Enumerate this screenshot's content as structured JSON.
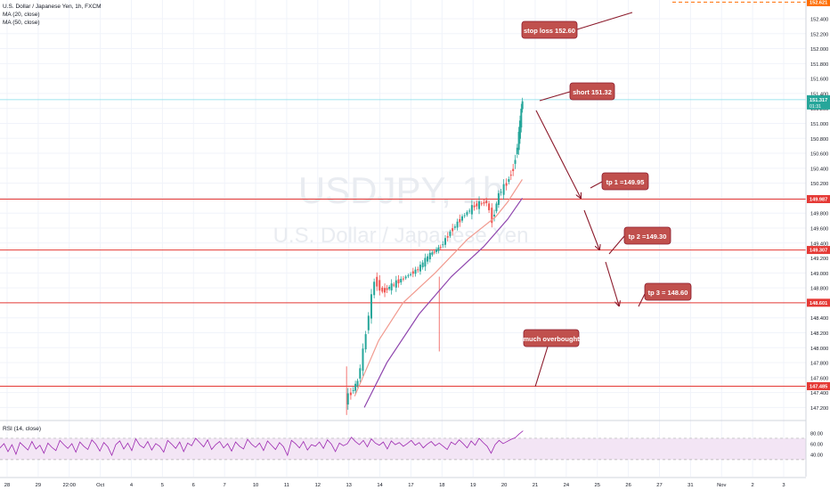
{
  "header": {
    "symbol_line": "U.S. Dollar / Japanese Yen, 1h, FXCM",
    "ma20_label": "MA (20, close)",
    "ma50_label": "MA (50, close)",
    "watermark_symbol": "USDJPY, 1h",
    "watermark_name": "U.S. Dollar / Japanese Yen"
  },
  "rsi_panel": {
    "label": "RSI (14, close)",
    "ticks": [
      "80.00",
      "60.00",
      "40.00"
    ],
    "tick_values": [
      80,
      60,
      40
    ],
    "band_upper": 70,
    "band_lower": 30
  },
  "x_axis": {
    "labels": [
      "28",
      "29",
      "22:00",
      "Oct",
      "4",
      "5",
      "6",
      "7",
      "10",
      "11",
      "12",
      "13",
      "14",
      "17",
      "18",
      "19",
      "20",
      "21",
      "24",
      "25",
      "26",
      "27",
      "31",
      "Nov",
      "2",
      "3"
    ]
  },
  "price_axis": {
    "ticks": [
      "152.400",
      "152.200",
      "152.000",
      "151.800",
      "151.600",
      "151.400",
      "151.200",
      "151.000",
      "150.800",
      "150.600",
      "150.400",
      "150.200",
      "150.000",
      "149.800",
      "149.600",
      "149.400",
      "149.200",
      "149.000",
      "148.800",
      "148.600",
      "148.400",
      "148.200",
      "148.000",
      "147.800",
      "147.600",
      "147.400",
      "147.200"
    ],
    "badges": [
      {
        "text": "152.621",
        "value": 152.621,
        "kind": "stop"
      },
      {
        "text": "151.317",
        "sub": "01:31",
        "value": 151.317,
        "kind": "current"
      },
      {
        "text": "149.987",
        "value": 149.987,
        "kind": "level"
      },
      {
        "text": "149.307",
        "value": 149.307,
        "kind": "level"
      },
      {
        "text": "148.601",
        "value": 148.601,
        "kind": "level"
      },
      {
        "text": "147.485",
        "value": 147.485,
        "kind": "level"
      }
    ]
  },
  "annotations": {
    "stop_loss": "stop loss 152.60",
    "short": "short 151.32",
    "tp1": "tp 1 =149.95",
    "tp2": "tp 2 =149.30",
    "tp3": "tp 3 = 148.60",
    "overbought": "much overbought"
  },
  "colors": {
    "up": "#26a69a",
    "down": "#ef5350",
    "ma20": "#f19a8f",
    "ma50": "#8e44ad",
    "level_line": "#e53935",
    "note_fill": "#c0504d",
    "arrow": "#8b1a2b",
    "rsi_line": "#9c27b0",
    "rsi_band": "#f3e5f5"
  },
  "chart_data": {
    "type": "candlestick",
    "symbol": "USDJPY",
    "timeframe": "1h",
    "ylim": [
      147.05,
      152.65
    ],
    "horizontal_levels": [
      149.987,
      149.307,
      148.601,
      147.485
    ],
    "stop_level": 152.621,
    "current_price": 151.317,
    "price_path": [
      {
        "x": 0.43,
        "y": 147.3
      },
      {
        "x": 0.437,
        "y": 147.4
      },
      {
        "x": 0.445,
        "y": 147.55
      },
      {
        "x": 0.452,
        "y": 147.95
      },
      {
        "x": 0.459,
        "y": 148.45
      },
      {
        "x": 0.466,
        "y": 148.9
      },
      {
        "x": 0.476,
        "y": 148.75
      },
      {
        "x": 0.49,
        "y": 148.85
      },
      {
        "x": 0.505,
        "y": 148.95
      },
      {
        "x": 0.52,
        "y": 149.05
      },
      {
        "x": 0.535,
        "y": 149.25
      },
      {
        "x": 0.548,
        "y": 149.35
      },
      {
        "x": 0.56,
        "y": 149.55
      },
      {
        "x": 0.575,
        "y": 149.75
      },
      {
        "x": 0.59,
        "y": 149.9
      },
      {
        "x": 0.605,
        "y": 149.95
      },
      {
        "x": 0.612,
        "y": 149.7
      },
      {
        "x": 0.62,
        "y": 150.05
      },
      {
        "x": 0.63,
        "y": 150.2
      },
      {
        "x": 0.638,
        "y": 150.4
      },
      {
        "x": 0.643,
        "y": 150.7
      },
      {
        "x": 0.646,
        "y": 151.0
      },
      {
        "x": 0.649,
        "y": 151.317
      }
    ],
    "ma20": [
      {
        "x": 0.44,
        "y": 147.35
      },
      {
        "x": 0.47,
        "y": 148.1
      },
      {
        "x": 0.5,
        "y": 148.6
      },
      {
        "x": 0.54,
        "y": 149.0
      },
      {
        "x": 0.58,
        "y": 149.45
      },
      {
        "x": 0.615,
        "y": 149.75
      },
      {
        "x": 0.63,
        "y": 149.95
      },
      {
        "x": 0.648,
        "y": 150.25
      }
    ],
    "ma50": [
      {
        "x": 0.452,
        "y": 147.2
      },
      {
        "x": 0.48,
        "y": 147.8
      },
      {
        "x": 0.52,
        "y": 148.45
      },
      {
        "x": 0.56,
        "y": 148.95
      },
      {
        "x": 0.6,
        "y": 149.35
      },
      {
        "x": 0.63,
        "y": 149.72
      },
      {
        "x": 0.648,
        "y": 150.0
      }
    ],
    "rsi": [
      52,
      60,
      45,
      58,
      40,
      62,
      55,
      48,
      64,
      50,
      57,
      42,
      61,
      53,
      47,
      66,
      58,
      51,
      60,
      44,
      63,
      55,
      49,
      67,
      59,
      46,
      62,
      54,
      38,
      58,
      65,
      50,
      61,
      47,
      69,
      57,
      52,
      64,
      48,
      60,
      55,
      44,
      66,
      59,
      51,
      63,
      45,
      61,
      56,
      70,
      62,
      54,
      67,
      49,
      58,
      64,
      52,
      60,
      46,
      63,
      55,
      50,
      68,
      59,
      53,
      61,
      47,
      65,
      57,
      49,
      62,
      54,
      38,
      66,
      60,
      52,
      64,
      48,
      58,
      55,
      63,
      51,
      67,
      59,
      45,
      61,
      56,
      60,
      72,
      64,
      58,
      66,
      54,
      69,
      61,
      57,
      63,
      50,
      65,
      58,
      62,
      55,
      60,
      66,
      57,
      62,
      52,
      59,
      64,
      56,
      61,
      55,
      49,
      63,
      58,
      67,
      60,
      52,
      65,
      57,
      70,
      62,
      55,
      42,
      58,
      66,
      60,
      64,
      68,
      71,
      78,
      84
    ]
  }
}
